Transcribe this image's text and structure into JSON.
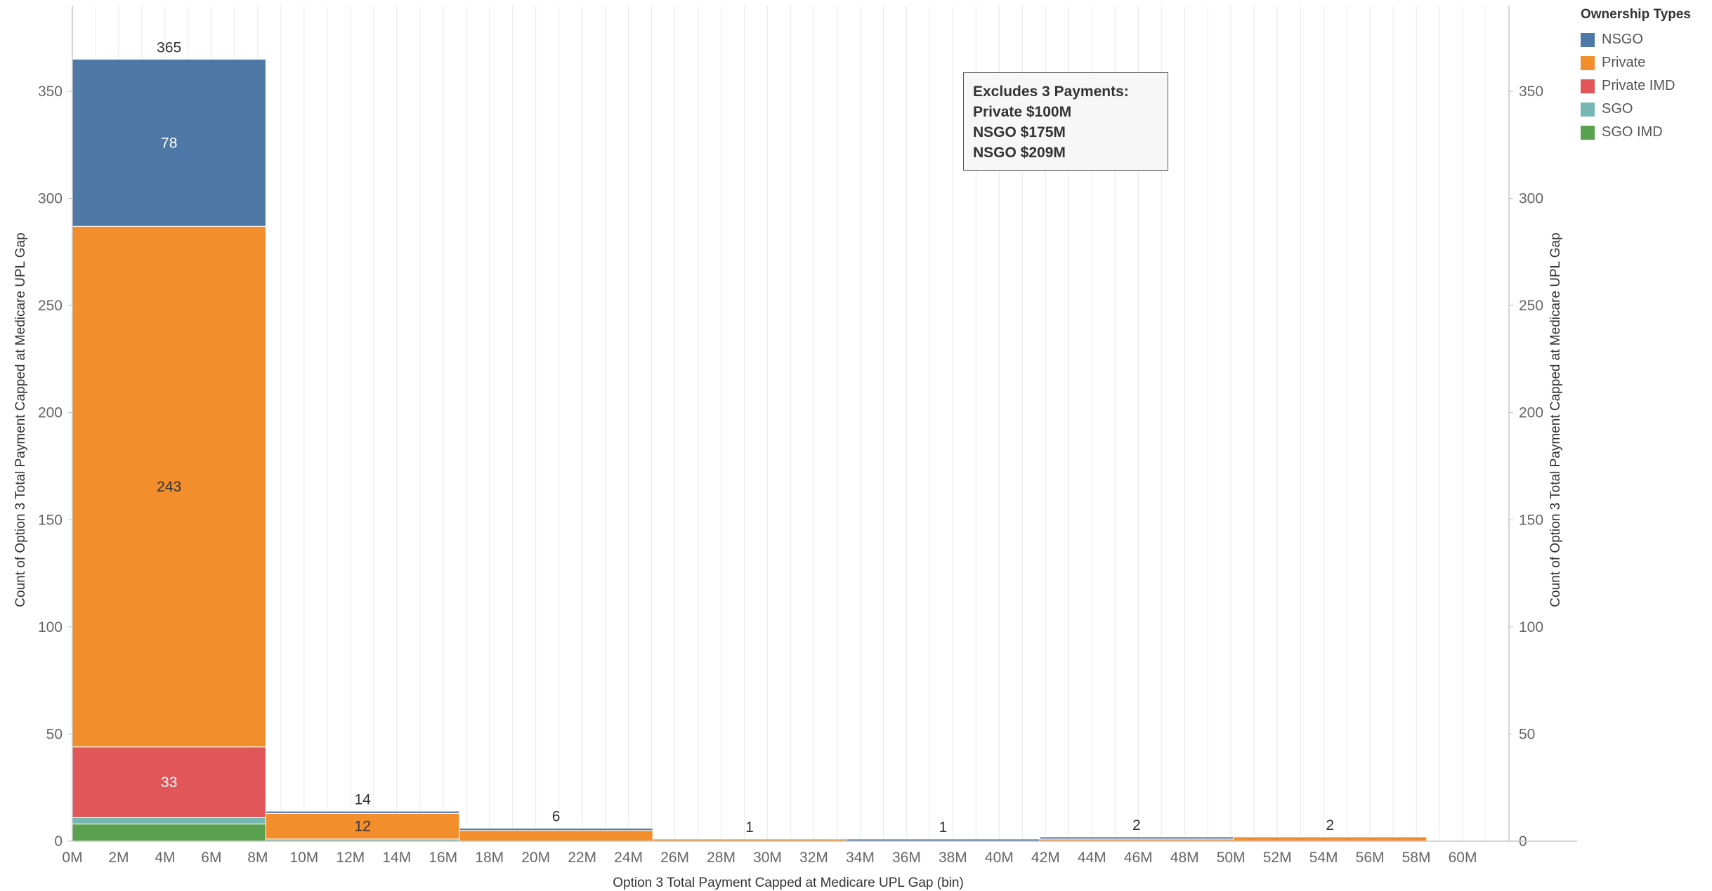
{
  "chart_data": {
    "type": "bar",
    "stacked": true,
    "xlabel": "Option 3 Total Payment Capped at Medicare UPL Gap (bin)",
    "ylabel": "Count of Option 3 Total Payment Capped at Medicare UPL Gap",
    "ylabel_right": "Count of Option 3 Total Payment Capped at Medicare UPL Gap",
    "xlim": [
      0,
      62
    ],
    "x_ticks": [
      "0M",
      "2M",
      "4M",
      "6M",
      "8M",
      "10M",
      "12M",
      "14M",
      "16M",
      "18M",
      "20M",
      "22M",
      "24M",
      "26M",
      "28M",
      "30M",
      "32M",
      "34M",
      "36M",
      "38M",
      "40M",
      "42M",
      "44M",
      "46M",
      "48M",
      "50M",
      "52M",
      "54M",
      "56M",
      "58M",
      "60M"
    ],
    "ylim": [
      0,
      390
    ],
    "y_ticks": [
      "0",
      "50",
      "100",
      "150",
      "200",
      "250",
      "300",
      "350"
    ],
    "grid": true,
    "legend_title": "Ownership Types",
    "legend_position": "top-right",
    "series": [
      {
        "name": "NSGO",
        "color": "#4e79a7"
      },
      {
        "name": "Private",
        "color": "#f28e2b"
      },
      {
        "name": "Private IMD",
        "color": "#e15759"
      },
      {
        "name": "SGO",
        "color": "#76b7b2"
      },
      {
        "name": "SGO IMD",
        "color": "#59a14f"
      }
    ],
    "bins": [
      {
        "start": 0,
        "end": 8.35,
        "total": "365",
        "segments": [
          {
            "series": "SGO IMD",
            "value": 8
          },
          {
            "series": "SGO",
            "value": 3
          },
          {
            "series": "Private IMD",
            "value": 33,
            "label": "33"
          },
          {
            "series": "Private",
            "value": 243,
            "label": "243"
          },
          {
            "series": "NSGO",
            "value": 78,
            "label": "78"
          }
        ]
      },
      {
        "start": 8.35,
        "end": 16.7,
        "total": "14",
        "segments": [
          {
            "series": "SGO",
            "value": 1
          },
          {
            "series": "Private",
            "value": 12,
            "label": "12"
          },
          {
            "series": "NSGO",
            "value": 1
          }
        ]
      },
      {
        "start": 16.7,
        "end": 25.05,
        "total": "6",
        "segments": [
          {
            "series": "Private",
            "value": 5
          },
          {
            "series": "NSGO",
            "value": 1
          }
        ]
      },
      {
        "start": 25.05,
        "end": 33.4,
        "total": "1",
        "segments": [
          {
            "series": "Private",
            "value": 1
          }
        ]
      },
      {
        "start": 33.4,
        "end": 41.75,
        "total": "1",
        "segments": [
          {
            "series": "NSGO",
            "value": 1
          }
        ]
      },
      {
        "start": 41.75,
        "end": 50.1,
        "total": "2",
        "segments": [
          {
            "series": "Private",
            "value": 1
          },
          {
            "series": "NSGO",
            "value": 1
          }
        ]
      },
      {
        "start": 50.1,
        "end": 58.45,
        "total": "2",
        "segments": [
          {
            "series": "Private",
            "value": 2
          }
        ]
      }
    ],
    "annotation": [
      "Excludes 3 Payments:",
      "Private $100M",
      "NSGO $175M",
      "NSGO $209M"
    ]
  }
}
